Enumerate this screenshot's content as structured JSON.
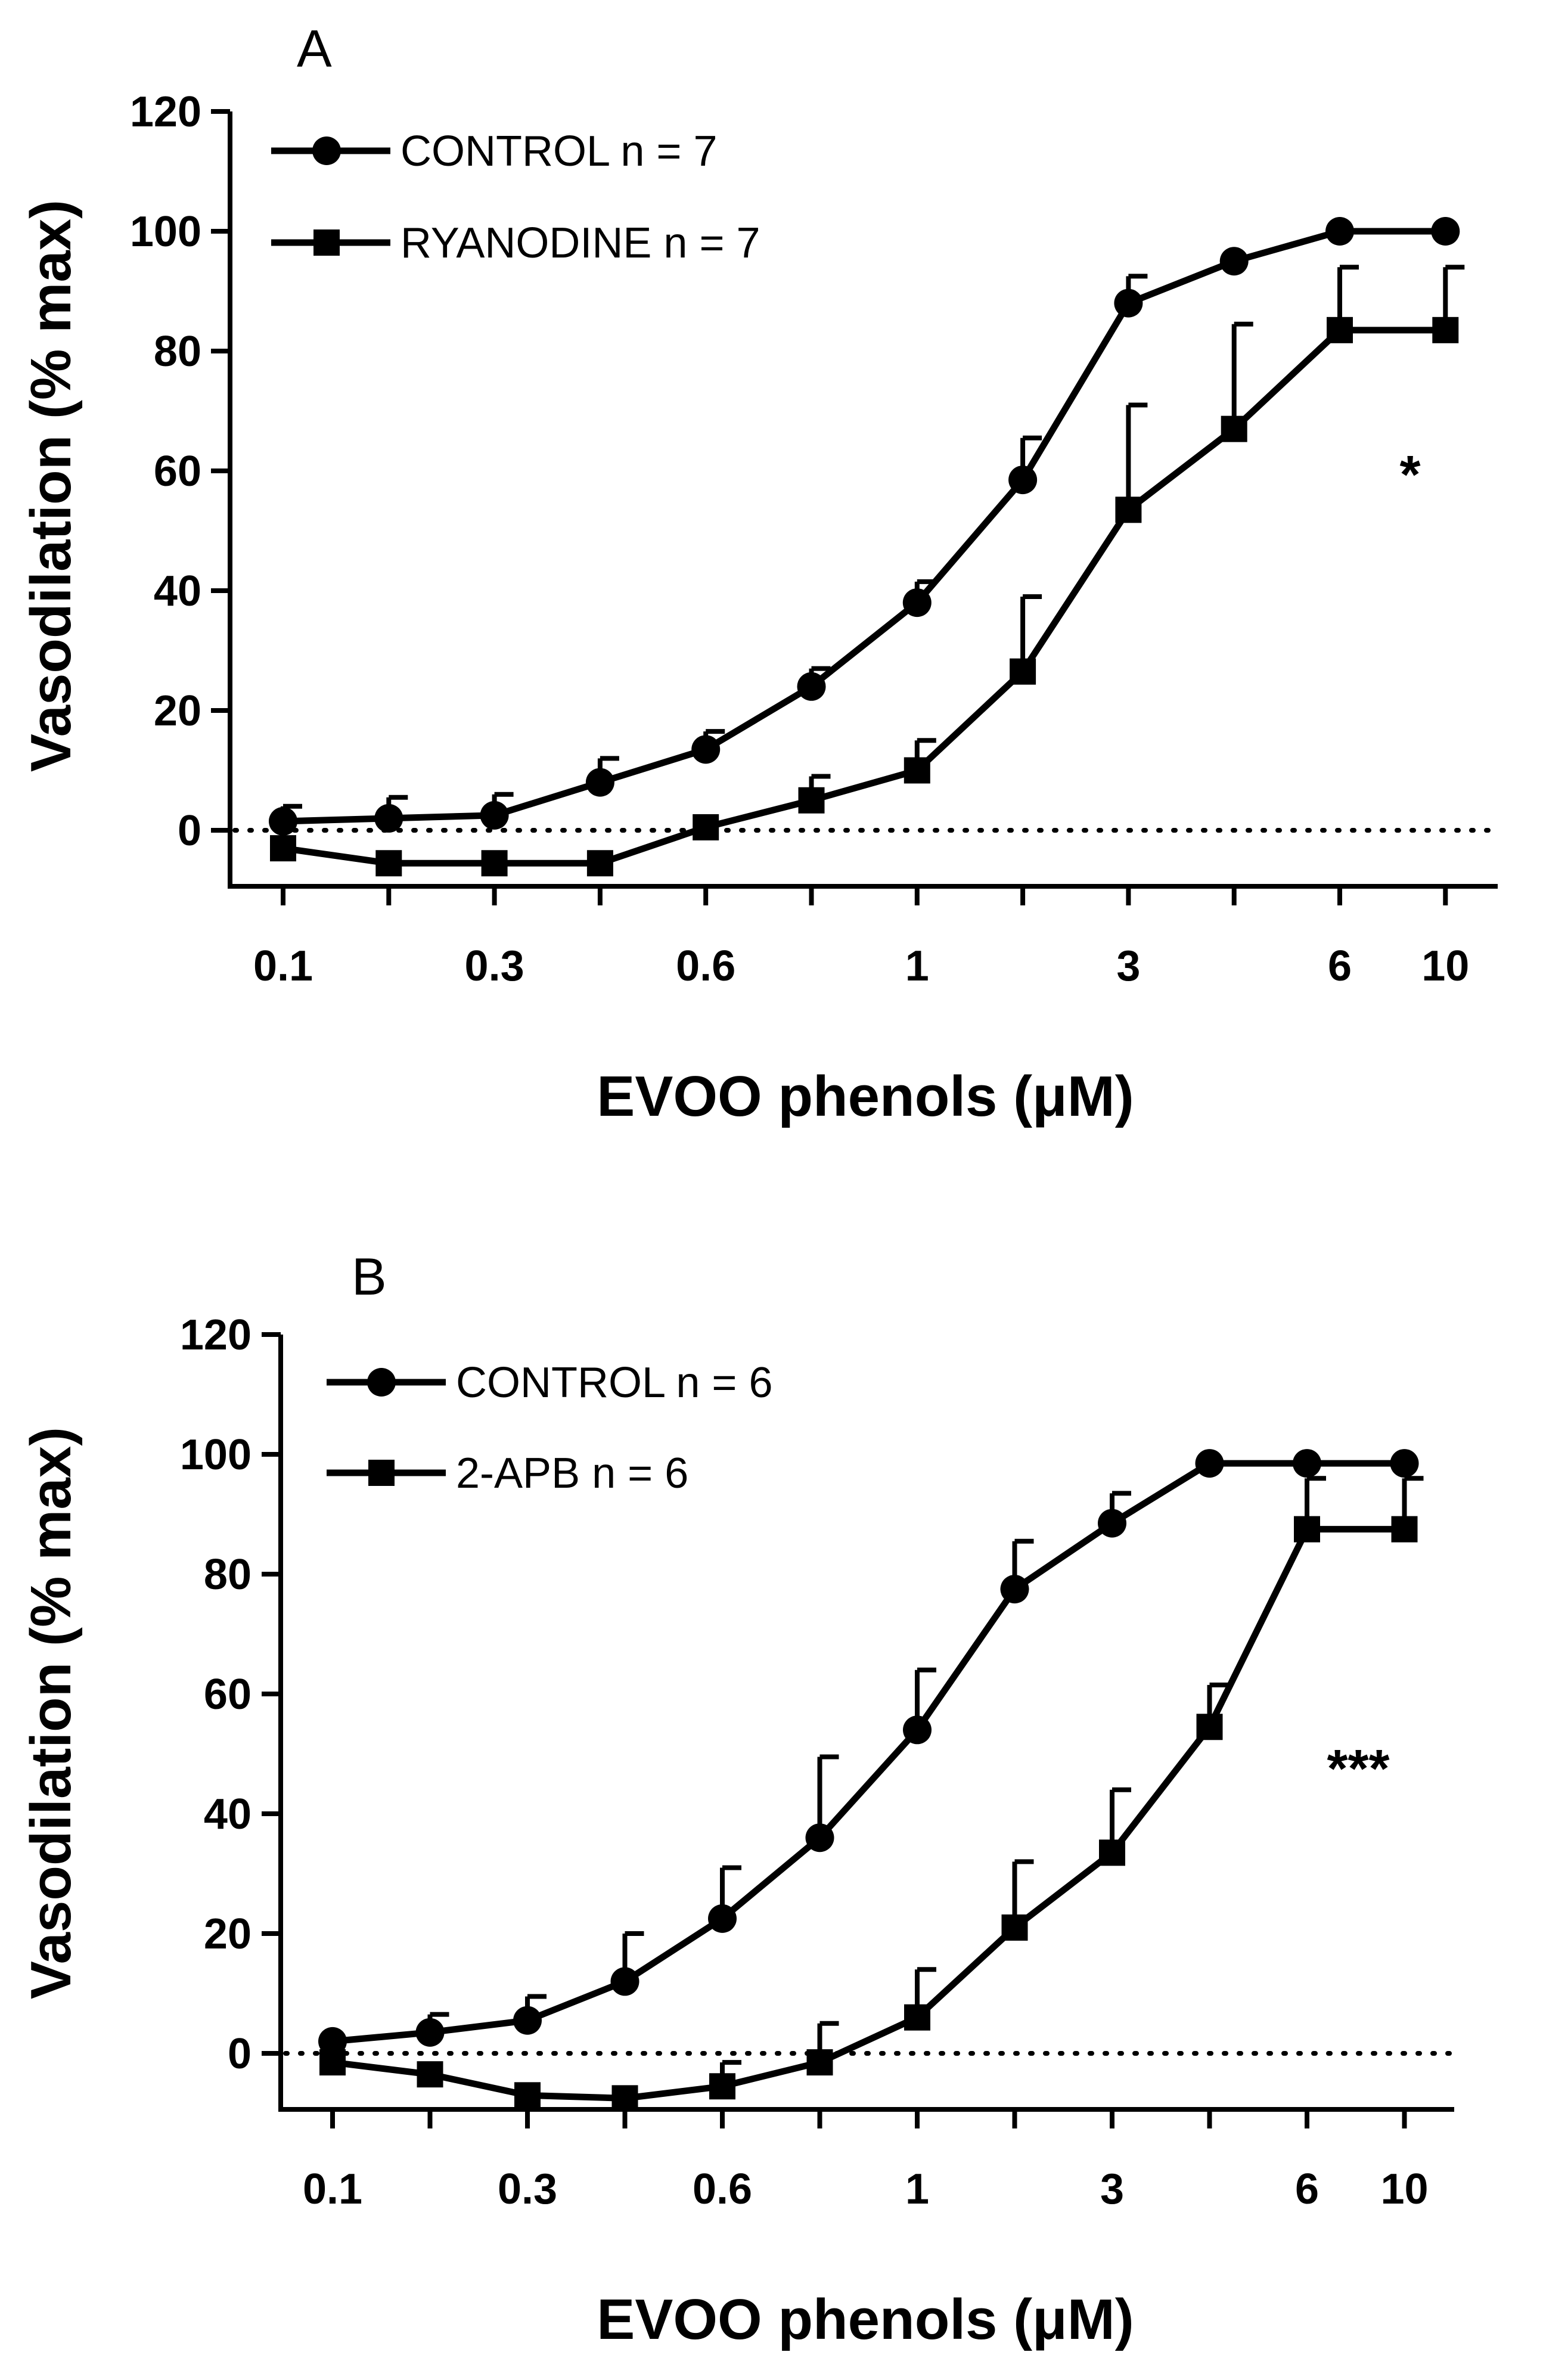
{
  "chart_data": [
    {
      "panel": "A",
      "type": "line",
      "xscale": "categorical",
      "categories": [
        "0.1",
        "",
        "0.3",
        "",
        "0.6",
        "",
        "1",
        "",
        "3",
        "",
        "6",
        "10"
      ],
      "tick_labels": [
        "0.1",
        "0.3",
        "0.6",
        "1",
        "3",
        "6",
        "10"
      ],
      "tick_positions": [
        0,
        2,
        4,
        6,
        8,
        10,
        11
      ],
      "xlabel": "EVOO phenols (μM)",
      "ylabel": "Vasodilation (% max)",
      "ylim": [
        -10,
        120
      ],
      "yticks": [
        "0",
        "20",
        "40",
        "60",
        "80",
        "100",
        "120"
      ],
      "baseline": 0,
      "series": [
        {
          "name": "CONTROL n = 7",
          "marker": "circle",
          "values": [
            1.5,
            2,
            2.5,
            8,
            13.5,
            24,
            38,
            58.5,
            88,
            95,
            100,
            100
          ],
          "errors": [
            2.5,
            3.5,
            3.5,
            4,
            3,
            3,
            3.5,
            7,
            4.5,
            0,
            0,
            0
          ]
        },
        {
          "name": "RYANODINE n = 7",
          "marker": "square",
          "values": [
            -3,
            -5.5,
            -5.5,
            -5.5,
            0.5,
            5,
            10,
            26.5,
            53.5,
            67,
            83.5,
            83.5
          ],
          "errors": [
            0,
            0,
            0,
            0,
            0,
            4,
            5,
            12.5,
            17.5,
            17.5,
            10.5,
            10.5
          ]
        }
      ],
      "significance": "*"
    },
    {
      "panel": "B",
      "type": "line",
      "xscale": "categorical",
      "categories": [
        "0.1",
        "",
        "0.3",
        "",
        "0.6",
        "",
        "1",
        "",
        "3",
        "",
        "6",
        "10"
      ],
      "tick_labels": [
        "0.1",
        "0.3",
        "0.6",
        "1",
        "3",
        "6",
        "10"
      ],
      "tick_positions": [
        0,
        2,
        4,
        6,
        8,
        10,
        11
      ],
      "xlabel": "EVOO phenols (μM)",
      "ylabel": "Vasodilation (% max)",
      "ylim": [
        -10,
        120
      ],
      "yticks": [
        "0",
        "20",
        "40",
        "60",
        "80",
        "100",
        "120"
      ],
      "baseline": 0,
      "series": [
        {
          "name": "CONTROL n = 6",
          "marker": "circle",
          "values": [
            2,
            3.5,
            5.5,
            12,
            22.5,
            36,
            54,
            77.5,
            88.5,
            98.5,
            98.5,
            98.5
          ],
          "errors": [
            0,
            3,
            4,
            8,
            8.5,
            13.5,
            10,
            8,
            5,
            0,
            0,
            0
          ]
        },
        {
          "name": "2-APB n = 6",
          "marker": "square",
          "values": [
            -1.5,
            -3.5,
            -7,
            -7.5,
            -5.5,
            -1.5,
            6,
            21,
            33.5,
            54.5,
            87.5,
            87.5
          ],
          "errors": [
            0,
            0,
            0,
            0,
            4,
            6.5,
            8,
            11,
            10.5,
            7,
            8.5,
            8.5
          ]
        }
      ],
      "significance": "***"
    }
  ]
}
